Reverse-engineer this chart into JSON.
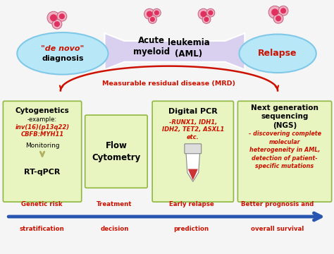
{
  "bg_color": "#f5f5f5",
  "ellipse_fill": "#b8e8f8",
  "ellipse_ec": "#80c8e8",
  "arrow_fill": "#d8d0ee",
  "arrow_ec": "#c0b8e0",
  "red_color": "#cc1100",
  "box_bg": "#e8f5c0",
  "box_border": "#90b840",
  "blue_arrow": "#2855b0",
  "cell_outer": "#f0b0c0",
  "cell_inner": "#e03060",
  "cell_ec": "#c06080",
  "mrd_arc_color": "#cc1100",
  "denovo_red": "#cc1100",
  "relapse_red": "#cc1100",
  "bottom_label_color": "#cc1100",
  "monitoring_arrow_color": "#c8c890",
  "denovo_line1": "\"de novo\"",
  "denovo_line2": "diagnosis",
  "relapse_text": "Relapse",
  "aml_left": "Acute\nmyeloid",
  "aml_right": "leukemia\n(AML)",
  "mrd_text": "Measurable residual disease (MRD)",
  "box1_title": "Cytogenetics",
  "box1_sub": "-example:",
  "box1_red1": "inv(16)(p13q22)",
  "box1_red2": "CBFB:MYH11",
  "box1_monitor": "Monitoring",
  "box1_rtqpcr": "RT-qPCR",
  "box2_title": "Flow\nCytometry",
  "box3_title": "Digital PCR",
  "box3_red1": "-RUNX1, IDH1,",
  "box3_red2": "IDH2, TET2, ASXL1",
  "box3_red3": "etc.",
  "box4_title": "Next generation\nsequencing\n(NGS)",
  "box4_red": "- discovering complete\nmolecular\nheterogeneity in AML,\ndetection of patient-\nspecific mutations",
  "bottom_line1": [
    "Genetic risk",
    "Treatment",
    "Early relapse",
    "Better prognosis and"
  ],
  "bottom_line2": [
    "stratification",
    "decision",
    "prediction",
    "overall survival"
  ]
}
